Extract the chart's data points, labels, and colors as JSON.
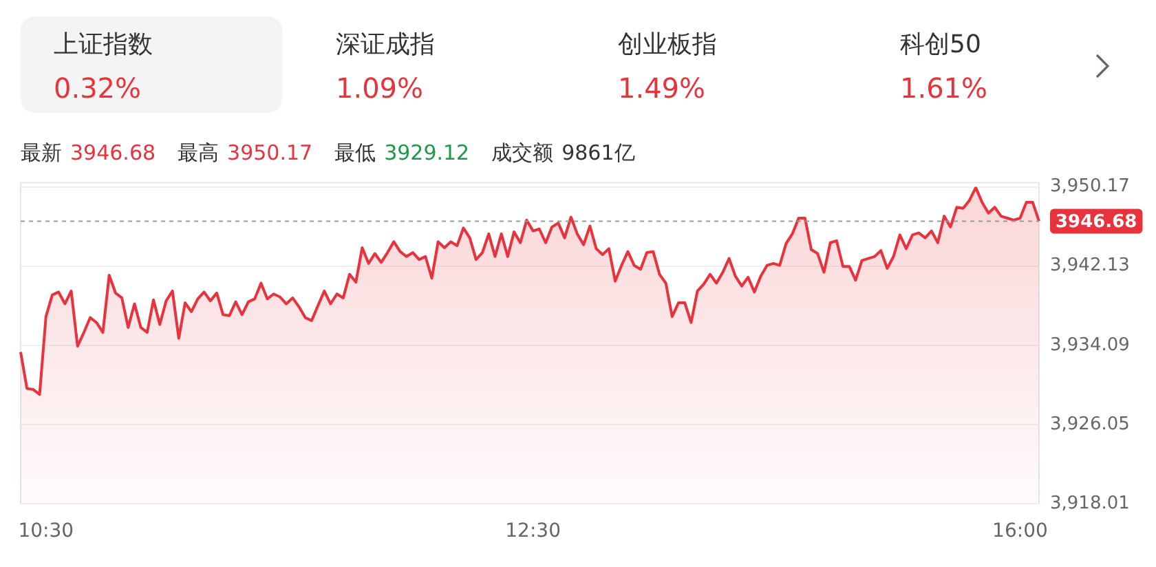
{
  "chart_data": {
    "type": "area",
    "categories": [
      null,
      null,
      null,
      null,
      "10:30",
      null,
      null,
      null,
      null,
      null,
      null,
      null,
      null,
      null,
      null,
      null,
      null,
      null,
      null,
      null,
      null,
      null,
      null,
      null,
      null,
      null,
      null,
      null,
      null,
      null,
      null,
      null,
      null,
      null,
      null,
      null,
      null,
      null,
      null,
      null,
      null,
      null,
      null,
      null,
      null,
      null,
      null,
      null,
      null,
      null,
      null,
      null,
      null,
      null,
      null,
      null,
      null,
      null,
      null,
      null,
      null,
      null,
      null,
      null,
      null,
      null,
      null,
      null,
      null,
      null,
      null,
      null,
      null,
      null,
      null,
      null,
      null,
      null,
      null,
      null,
      null,
      "12:30",
      null,
      null,
      null,
      null,
      null,
      null,
      null,
      null,
      null,
      null,
      null,
      null,
      null,
      null,
      null,
      null,
      null,
      null,
      null,
      null,
      null,
      null,
      null,
      null,
      null,
      null,
      null,
      null,
      null,
      null,
      null,
      null,
      null,
      null,
      null,
      null,
      null,
      null,
      null,
      null,
      null,
      null,
      null,
      null,
      null,
      null,
      null,
      null,
      null,
      null,
      null,
      null,
      null,
      null,
      null,
      null,
      null,
      null,
      null,
      null,
      null,
      null,
      null,
      null,
      null,
      null,
      null,
      null,
      null,
      null,
      null,
      null,
      null,
      null,
      null,
      null,
      "16:00",
      null,
      null,
      null
    ],
    "series": [
      {
        "color": "#e8323c",
        "values": [
          3933.4,
          3929.7,
          3929.6,
          3929.1,
          3937.0,
          3939.2,
          3939.5,
          3938.3,
          3939.6,
          3934.0,
          3935.4,
          3936.9,
          3936.4,
          3935.4,
          3941.2,
          3939.4,
          3938.9,
          3935.9,
          3938.3,
          3935.9,
          3935.4,
          3938.7,
          3936.2,
          3938.6,
          3939.6,
          3934.8,
          3938.4,
          3937.5,
          3938.8,
          3939.5,
          3938.6,
          3939.4,
          3937.2,
          3937.1,
          3938.5,
          3937.2,
          3938.5,
          3938.8,
          3940.4,
          3938.8,
          3939.3,
          3939.0,
          3938.3,
          3938.9,
          3938.0,
          3936.9,
          3936.6,
          3938.1,
          3939.6,
          3938.3,
          3939.3,
          3938.9,
          3941.3,
          3940.5,
          3944.0,
          3942.4,
          3943.4,
          3942.5,
          3943.5,
          3944.6,
          3943.6,
          3943.1,
          3943.5,
          3942.8,
          3943.1,
          3940.9,
          3944.6,
          3944.0,
          3944.6,
          3944.2,
          3946.0,
          3945.0,
          3942.8,
          3943.5,
          3945.4,
          3943.1,
          3945.4,
          3943.1,
          3945.6,
          3944.5,
          3946.8,
          3945.7,
          3945.9,
          3944.5,
          3946.1,
          3946.5,
          3945.0,
          3947.1,
          3945.4,
          3944.3,
          3946.2,
          3943.9,
          3943.3,
          3943.9,
          3940.6,
          3942.2,
          3943.6,
          3942.2,
          3941.8,
          3943.5,
          3943.6,
          3941.3,
          3940.4,
          3937.0,
          3938.4,
          3938.4,
          3936.4,
          3939.6,
          3940.3,
          3941.3,
          3940.4,
          3941.5,
          3942.9,
          3941.1,
          3940.1,
          3941.0,
          3939.5,
          3941.1,
          3942.2,
          3942.4,
          3942.2,
          3944.4,
          3945.4,
          3947.0,
          3947.0,
          3943.8,
          3943.4,
          3941.5,
          3944.5,
          3944.7,
          3942.1,
          3942.1,
          3940.7,
          3942.7,
          3942.9,
          3943.1,
          3943.7,
          3941.9,
          3943.1,
          3945.3,
          3943.9,
          3945.3,
          3945.5,
          3945.0,
          3945.7,
          3944.5,
          3947.2,
          3946.1,
          3948.1,
          3948.0,
          3948.8,
          3950.1,
          3948.6,
          3947.5,
          3948.1,
          3947.2,
          3947.0,
          3946.8,
          3947.0,
          3948.6,
          3948.6,
          3946.7
        ]
      }
    ],
    "ylim": [
      3918.01,
      3950.17
    ],
    "yticks": [
      {
        "value": 3918.01,
        "label": "3,918.01"
      },
      {
        "value": 3926.05,
        "label": "3,926.05"
      },
      {
        "value": 3934.09,
        "label": "3,934.09"
      },
      {
        "value": 3942.13,
        "label": "3,942.13"
      },
      {
        "value": 3950.17,
        "label": "3,950.17"
      }
    ],
    "grid": "y",
    "ref_lines": [
      {
        "axis": "y",
        "value": 3946.68,
        "label": "3946.68",
        "color": "#999999",
        "line_style": "dashed"
      }
    ],
    "annotations": [
      "上证指数",
      "0.32%",
      "深证成指",
      "1.09%",
      "创业板指",
      "1.49%",
      "科创50",
      "1.61%",
      "最新",
      "3946.68",
      "最高",
      "3950.17",
      "最低",
      "3929.12",
      "成交额",
      "9861亿"
    ]
  }
}
